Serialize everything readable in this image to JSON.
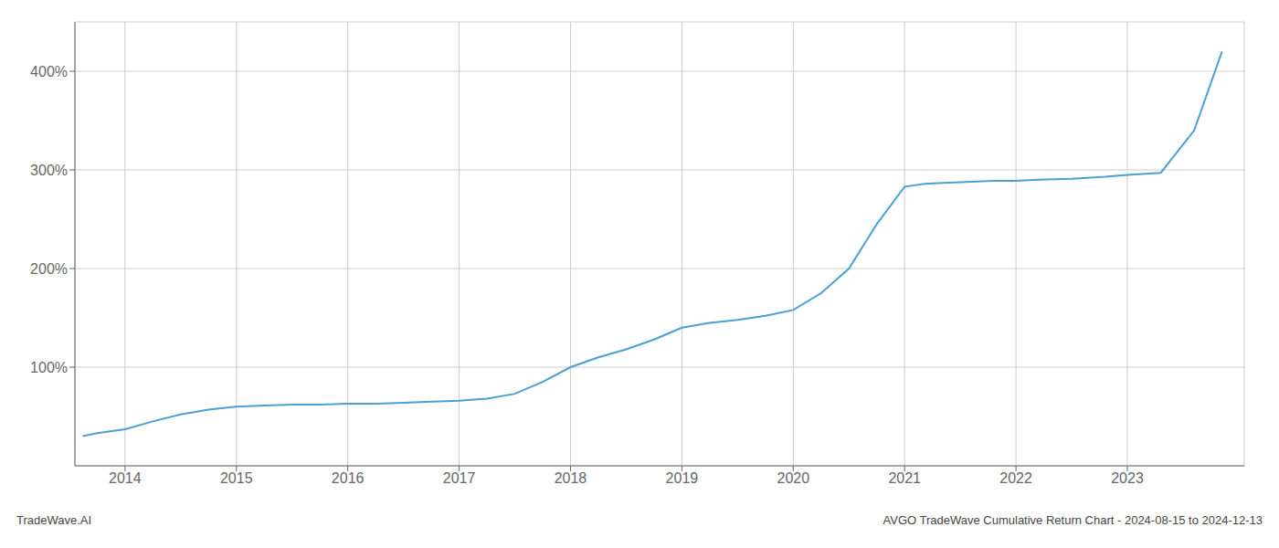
{
  "chart_data": {
    "type": "line",
    "title": "AVGO TradeWave Cumulative Return Chart - 2024-08-15 to 2024-12-13",
    "annotations": [
      "TradeWave.AI"
    ],
    "x": [
      2013.62,
      2013.75,
      2014.0,
      2014.25,
      2014.5,
      2014.75,
      2015.0,
      2015.25,
      2015.5,
      2015.75,
      2016.0,
      2016.25,
      2016.5,
      2016.75,
      2017.0,
      2017.25,
      2017.5,
      2017.75,
      2018.0,
      2018.25,
      2018.5,
      2018.75,
      2019.0,
      2019.25,
      2019.5,
      2019.75,
      2020.0,
      2020.25,
      2020.5,
      2020.75,
      2021.0,
      2021.2,
      2021.4,
      2021.6,
      2021.8,
      2022.0,
      2022.2,
      2022.5,
      2022.8,
      2023.0,
      2023.3,
      2023.6,
      2023.85
    ],
    "values": [
      30,
      33,
      37,
      45,
      52,
      57,
      60,
      61,
      62,
      62,
      63,
      63,
      64,
      65,
      66,
      68,
      73,
      85,
      100,
      110,
      118,
      128,
      140,
      145,
      148,
      152,
      158,
      175,
      200,
      245,
      283,
      286,
      287,
      288,
      289,
      289,
      290,
      291,
      293,
      295,
      297,
      340,
      420
    ],
    "color": "#4a9fd4",
    "xlim": [
      2013.55,
      2024.05
    ],
    "xticks": [
      2014,
      2015,
      2016,
      2017,
      2018,
      2019,
      2020,
      2021,
      2022,
      2023
    ],
    "ylim": [
      0,
      450
    ],
    "yticks": [
      {
        "value": 100,
        "label": "100%"
      },
      {
        "value": 200,
        "label": "200%"
      },
      {
        "value": 300,
        "label": "300%"
      },
      {
        "value": 400,
        "label": "400%"
      }
    ],
    "grid": true
  }
}
